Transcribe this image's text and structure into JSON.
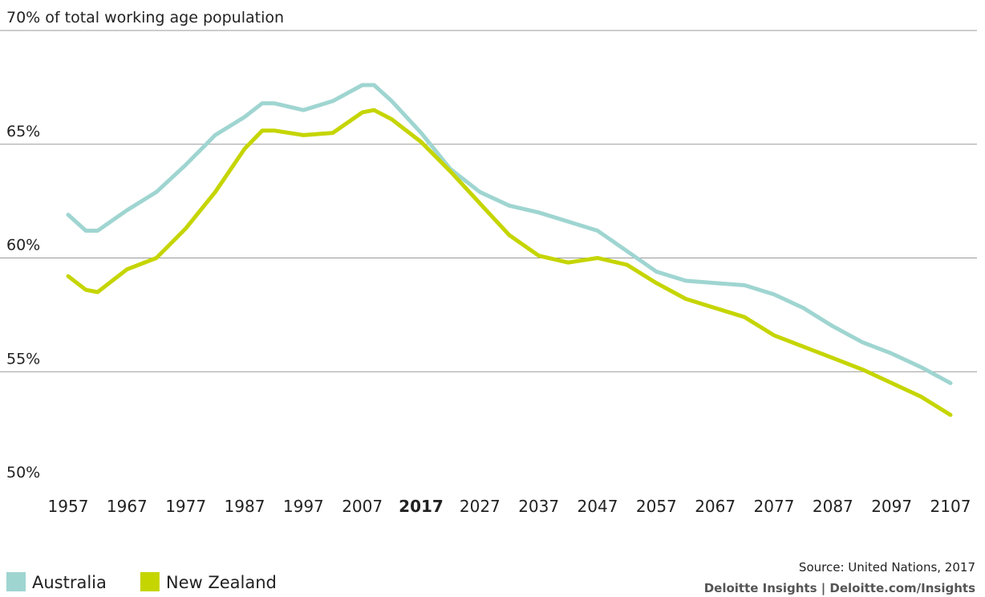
{
  "chart_data": {
    "type": "line",
    "x": [
      1957,
      1960,
      1962,
      1967,
      1972,
      1977,
      1982,
      1987,
      1990,
      1992,
      1997,
      2002,
      2007,
      2009,
      2012,
      2017,
      2022,
      2027,
      2032,
      2037,
      2042,
      2047,
      2052,
      2057,
      2062,
      2067,
      2072,
      2077,
      2082,
      2087,
      2092,
      2097,
      2102,
      2107
    ],
    "series": [
      {
        "name": "Australia",
        "color": "#9fd5d1",
        "values": [
          61.9,
          61.2,
          61.2,
          62.1,
          62.9,
          64.1,
          65.4,
          66.2,
          66.8,
          66.8,
          66.5,
          66.9,
          67.6,
          67.6,
          66.9,
          65.5,
          63.9,
          62.9,
          62.3,
          62.0,
          61.6,
          61.2,
          60.3,
          59.4,
          59.0,
          58.9,
          58.8,
          58.4,
          57.8,
          57.0,
          56.3,
          55.8,
          55.2,
          54.5
        ]
      },
      {
        "name": "New Zealand",
        "color": "#c5d500",
        "values": [
          59.2,
          58.6,
          58.5,
          59.5,
          60.0,
          61.3,
          62.9,
          64.8,
          65.6,
          65.6,
          65.4,
          65.5,
          66.4,
          66.5,
          66.1,
          65.1,
          63.8,
          62.4,
          61.0,
          60.1,
          59.8,
          60.0,
          59.7,
          58.9,
          58.2,
          57.8,
          57.4,
          56.6,
          56.1,
          55.6,
          55.1,
          54.5,
          53.9,
          53.1
        ]
      }
    ],
    "xlim": [
      1957,
      2107
    ],
    "xticks": [
      1957,
      1967,
      1977,
      1987,
      1997,
      2007,
      2017,
      2027,
      2037,
      2047,
      2057,
      2067,
      2077,
      2087,
      2097,
      2107
    ],
    "highlight_x": 2017,
    "ylim": [
      50,
      70
    ],
    "yticks": [
      {
        "value": 50,
        "label": "50%"
      },
      {
        "value": 55,
        "label": "55%"
      },
      {
        "value": 60,
        "label": "60%"
      },
      {
        "value": 65,
        "label": "65%"
      },
      {
        "value": 70,
        "label": "70% of total working age population"
      }
    ],
    "grid": true,
    "source": "Source: United Nations, 2017",
    "credit": "Deloitte Insights | Deloitte.com/Insights"
  }
}
